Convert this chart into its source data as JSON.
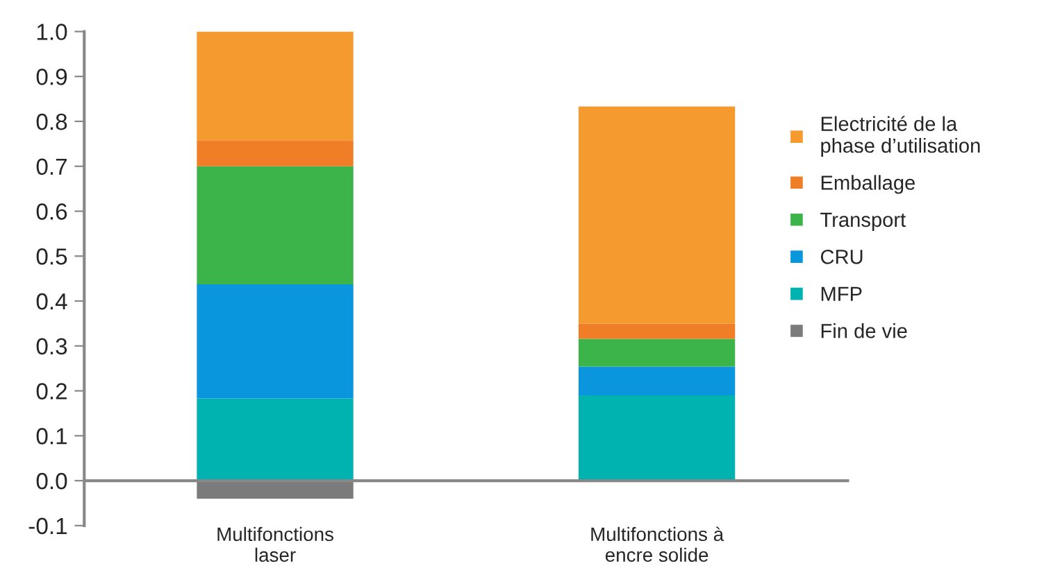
{
  "chart_data": {
    "type": "bar",
    "stacked": true,
    "categories": [
      "Multifonctions\nlaser",
      "Multifonctions à\nencre solide"
    ],
    "series": [
      {
        "name": "Fin de vie",
        "color": "#7b7b7b",
        "values": [
          -0.04,
          0
        ]
      },
      {
        "name": "MFP",
        "color": "#00b2b0",
        "values": [
          0.183,
          0.19
        ]
      },
      {
        "name": "CRU",
        "color": "#0a96dc",
        "values": [
          0.254,
          0.064
        ]
      },
      {
        "name": "Transport",
        "color": "#3cb44a",
        "values": [
          0.263,
          0.062
        ]
      },
      {
        "name": "Emballage",
        "color": "#f07e26",
        "values": [
          0.058,
          0.034
        ]
      },
      {
        "name": "Electricité de la\nphase d’utilisation",
        "color": "#f59a2f",
        "values": [
          0.242,
          0.483
        ]
      }
    ],
    "ylim": [
      -0.1,
      1.0
    ],
    "yticks": [
      {
        "value": -0.1,
        "label": "-0.1"
      },
      {
        "value": 0,
        "label": "0.0"
      },
      {
        "value": 0.1,
        "label": "0.1"
      },
      {
        "value": 0.2,
        "label": "0.2"
      },
      {
        "value": 0.3,
        "label": "0.3"
      },
      {
        "value": 0.4,
        "label": "0.4"
      },
      {
        "value": 0.5,
        "label": "0.5"
      },
      {
        "value": 0.6,
        "label": "0.6"
      },
      {
        "value": 0.7,
        "label": "0.7"
      },
      {
        "value": 0.8,
        "label": "0.8"
      },
      {
        "value": 0.9,
        "label": "0.9"
      },
      {
        "value": 1.0,
        "label": "1.0"
      }
    ],
    "legend": "right"
  }
}
